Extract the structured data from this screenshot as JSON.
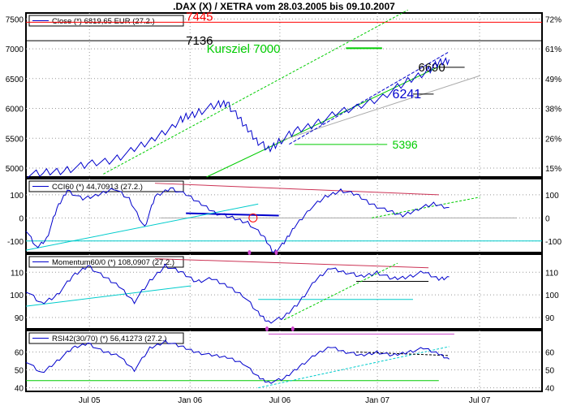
{
  "title": ".DAX (X) / XETRA vom 28.03.2005 bis 09.10.2007",
  "colors": {
    "price": "#0000cc",
    "green": "#00cc00",
    "cyan": "#00cccc",
    "red": "#ff0000",
    "magenta": "#cc44cc",
    "darkred": "#cc3355",
    "gray": "#aaaaaa",
    "frame": "#000000"
  },
  "x_axis": {
    "labels": [
      "Jul 05",
      "Jan 06",
      "Jul 06",
      "Jan 07",
      "Jul 07"
    ]
  },
  "chart_data": [
    {
      "type": "line",
      "legend": "Close (*) 6819,65 EUR (27.2.)",
      "ylim": [
        4850,
        7600
      ],
      "y_ticks_left": [
        5000,
        5500,
        6000,
        6500,
        7000,
        7500
      ],
      "y_ticks_right": [
        "15%",
        "26%",
        "38%",
        "49%",
        "61%",
        "72%"
      ],
      "annotations": [
        {
          "text": "7445",
          "value": 7445,
          "color": "#ff0000"
        },
        {
          "text": "7136",
          "value": 7136,
          "color": "#000000"
        },
        {
          "text": "Kursziel 7000",
          "value": 7000,
          "color": "#00cc00"
        },
        {
          "text": "6690",
          "value": 6690,
          "color": "#000000"
        },
        {
          "text": "6241",
          "value": 6241,
          "color": "#0000cc"
        },
        {
          "text": "5396",
          "value": 5396,
          "color": "#00cc00"
        }
      ],
      "series_points": [
        [
          0.0,
          4880
        ],
        [
          0.04,
          4920
        ],
        [
          0.08,
          4980
        ],
        [
          0.12,
          5050
        ],
        [
          0.17,
          5150
        ],
        [
          0.21,
          5300
        ],
        [
          0.25,
          5500
        ],
        [
          0.29,
          5750
        ],
        [
          0.31,
          5850
        ],
        [
          0.335,
          5950
        ],
        [
          0.37,
          6050
        ],
        [
          0.39,
          6100
        ],
        [
          0.41,
          5850
        ],
        [
          0.43,
          5650
        ],
        [
          0.45,
          5450
        ],
        [
          0.47,
          5300
        ],
        [
          0.49,
          5450
        ],
        [
          0.52,
          5600
        ],
        [
          0.56,
          5750
        ],
        [
          0.6,
          5900
        ],
        [
          0.65,
          6050
        ],
        [
          0.7,
          6250
        ],
        [
          0.74,
          6450
        ],
        [
          0.78,
          6650
        ],
        [
          0.8,
          6750
        ],
        [
          0.82,
          6820
        ]
      ]
    },
    {
      "type": "line",
      "legend": "CCI60 (*) 44,70913 (27.2.)",
      "ylim": [
        -150,
        170
      ],
      "y_ticks_left": [
        -100,
        0,
        100
      ],
      "y_ticks_right": [
        -100,
        0,
        100
      ],
      "series_points": [
        [
          0.0,
          -50
        ],
        [
          0.02,
          -130
        ],
        [
          0.04,
          -90
        ],
        [
          0.06,
          40
        ],
        [
          0.08,
          120
        ],
        [
          0.11,
          80
        ],
        [
          0.14,
          100
        ],
        [
          0.17,
          130
        ],
        [
          0.2,
          80
        ],
        [
          0.23,
          -40
        ],
        [
          0.25,
          90
        ],
        [
          0.28,
          130
        ],
        [
          0.31,
          100
        ],
        [
          0.34,
          60
        ],
        [
          0.37,
          20
        ],
        [
          0.4,
          0
        ],
        [
          0.43,
          -20
        ],
        [
          0.46,
          -80
        ],
        [
          0.48,
          -150
        ],
        [
          0.5,
          -110
        ],
        [
          0.52,
          -40
        ],
        [
          0.55,
          40
        ],
        [
          0.58,
          90
        ],
        [
          0.61,
          120
        ],
        [
          0.64,
          100
        ],
        [
          0.67,
          60
        ],
        [
          0.7,
          30
        ],
        [
          0.73,
          10
        ],
        [
          0.76,
          40
        ],
        [
          0.79,
          60
        ],
        [
          0.82,
          45
        ]
      ]
    },
    {
      "type": "line",
      "legend": "Momentum60/0 (*) 108,0907 (27.2.)",
      "ylim": [
        85,
        118
      ],
      "y_ticks_left": [
        90,
        100,
        110
      ],
      "y_ticks_right": [
        90,
        100,
        110
      ],
      "series_points": [
        [
          0.0,
          102
        ],
        [
          0.03,
          96
        ],
        [
          0.06,
          100
        ],
        [
          0.09,
          108
        ],
        [
          0.12,
          113
        ],
        [
          0.15,
          108
        ],
        [
          0.18,
          104
        ],
        [
          0.21,
          97
        ],
        [
          0.24,
          106
        ],
        [
          0.27,
          113
        ],
        [
          0.3,
          110
        ],
        [
          0.33,
          106
        ],
        [
          0.36,
          107
        ],
        [
          0.39,
          104
        ],
        [
          0.42,
          100
        ],
        [
          0.45,
          92
        ],
        [
          0.47,
          88
        ],
        [
          0.5,
          90
        ],
        [
          0.53,
          97
        ],
        [
          0.56,
          106
        ],
        [
          0.59,
          112
        ],
        [
          0.62,
          110
        ],
        [
          0.65,
          108
        ],
        [
          0.68,
          110
        ],
        [
          0.71,
          107
        ],
        [
          0.74,
          108
        ],
        [
          0.77,
          110
        ],
        [
          0.8,
          107
        ],
        [
          0.82,
          108
        ]
      ]
    },
    {
      "type": "line",
      "legend": "RSI42(30/70) (*) 56,41273 (27.2.)",
      "ylim": [
        38,
        72
      ],
      "y_ticks_left": [
        40,
        50,
        60
      ],
      "y_ticks_right": [
        40,
        50,
        60
      ],
      "series_points": [
        [
          0.0,
          55
        ],
        [
          0.03,
          48
        ],
        [
          0.06,
          55
        ],
        [
          0.09,
          62
        ],
        [
          0.12,
          65
        ],
        [
          0.15,
          60
        ],
        [
          0.18,
          58
        ],
        [
          0.21,
          50
        ],
        [
          0.24,
          62
        ],
        [
          0.27,
          66
        ],
        [
          0.3,
          63
        ],
        [
          0.33,
          60
        ],
        [
          0.36,
          58
        ],
        [
          0.39,
          57
        ],
        [
          0.42,
          54
        ],
        [
          0.45,
          46
        ],
        [
          0.47,
          43
        ],
        [
          0.5,
          45
        ],
        [
          0.53,
          52
        ],
        [
          0.56,
          58
        ],
        [
          0.59,
          63
        ],
        [
          0.62,
          60
        ],
        [
          0.65,
          58
        ],
        [
          0.68,
          60
        ],
        [
          0.71,
          58
        ],
        [
          0.74,
          60
        ],
        [
          0.77,
          62
        ],
        [
          0.8,
          59
        ],
        [
          0.82,
          56
        ]
      ]
    }
  ]
}
